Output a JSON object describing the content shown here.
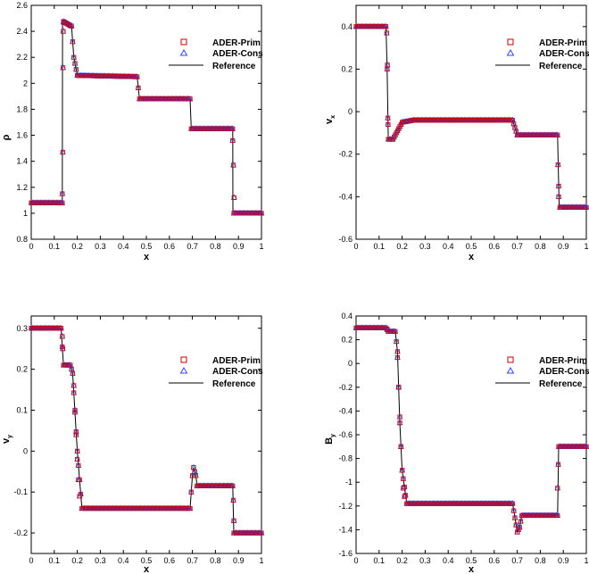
{
  "chart_data": [
    {
      "type": "scatter",
      "ylabel": "ρ",
      "ylabel_sub": "",
      "xlabel": "x",
      "xlim": [
        0,
        1
      ],
      "ylim": [
        0.8,
        2.6
      ],
      "xticks": [
        "0",
        "0.1",
        "0.2",
        "0.3",
        "0.4",
        "0.5",
        "0.6",
        "0.7",
        "0.8",
        "0.9",
        "1"
      ],
      "yticks": [
        "0.8",
        "1",
        "1.2",
        "1.4",
        "1.6",
        "1.8",
        "2",
        "2.2",
        "2.4",
        "2.6"
      ],
      "ytick_values": [
        0.8,
        1,
        1.2,
        1.4,
        1.6,
        1.8,
        2,
        2.2,
        2.4,
        2.6
      ],
      "legend_position": "top-right",
      "reference": [
        [
          0,
          1.08
        ],
        [
          0.135,
          1.08
        ],
        [
          0.136,
          2.48
        ],
        [
          0.155,
          2.46
        ],
        [
          0.175,
          2.44
        ],
        [
          0.185,
          2.2
        ],
        [
          0.2,
          2.06
        ],
        [
          0.46,
          2.05
        ],
        [
          0.47,
          1.88
        ],
        [
          0.69,
          1.88
        ],
        [
          0.695,
          1.65
        ],
        [
          0.875,
          1.65
        ],
        [
          0.876,
          1.0
        ],
        [
          1.0,
          1.0
        ]
      ],
      "markers": [
        [
          0.135,
          1.15
        ],
        [
          0.137,
          1.47
        ],
        [
          0.138,
          2.12
        ],
        [
          0.139,
          2.4
        ],
        [
          0.14,
          2.47
        ],
        [
          0.875,
          1.56
        ],
        [
          0.878,
          1.37
        ],
        [
          0.881,
          1.12
        ]
      ]
    },
    {
      "type": "scatter",
      "ylabel": "v",
      "ylabel_sub": "x",
      "xlabel": "x",
      "xlim": [
        0,
        1
      ],
      "ylim": [
        -0.6,
        0.5
      ],
      "xticks": [
        "0",
        "0.1",
        "0.2",
        "0.3",
        "0.4",
        "0.5",
        "0.6",
        "0.7",
        "0.8",
        "0.9",
        "1"
      ],
      "yticks": [
        "-0.6",
        "-0.4",
        "-0.2",
        "0",
        "0.2",
        "0.4"
      ],
      "ytick_values": [
        -0.6,
        -0.4,
        -0.2,
        0,
        0.2,
        0.4
      ],
      "legend_position": "top-right",
      "reference": [
        [
          0,
          0.4
        ],
        [
          0.13,
          0.4
        ],
        [
          0.135,
          0.2
        ],
        [
          0.14,
          -0.13
        ],
        [
          0.16,
          -0.13
        ],
        [
          0.2,
          -0.05
        ],
        [
          0.25,
          -0.04
        ],
        [
          0.68,
          -0.04
        ],
        [
          0.7,
          -0.11
        ],
        [
          0.875,
          -0.11
        ],
        [
          0.878,
          -0.25
        ],
        [
          0.882,
          -0.45
        ],
        [
          1.0,
          -0.45
        ]
      ],
      "markers": [
        [
          0.133,
          0.37
        ],
        [
          0.136,
          0.22
        ],
        [
          0.138,
          -0.03
        ],
        [
          0.139,
          -0.06
        ],
        [
          0.877,
          -0.25
        ],
        [
          0.88,
          -0.4
        ]
      ]
    },
    {
      "type": "scatter",
      "ylabel": "v",
      "ylabel_sub": "y",
      "xlabel": "x",
      "xlim": [
        0,
        1
      ],
      "ylim": [
        -0.25,
        0.33
      ],
      "xticks": [
        "0",
        "0.1",
        "0.2",
        "0.3",
        "0.4",
        "0.5",
        "0.6",
        "0.7",
        "0.8",
        "0.9",
        "1"
      ],
      "yticks": [
        "-0.2",
        "-0.1",
        "0",
        "0.1",
        "0.2",
        "0.3"
      ],
      "ytick_values": [
        -0.2,
        -0.1,
        0,
        0.1,
        0.2,
        0.3
      ],
      "legend_position": "top-right",
      "reference": [
        [
          0,
          0.3
        ],
        [
          0.13,
          0.3
        ],
        [
          0.14,
          0.21
        ],
        [
          0.17,
          0.21
        ],
        [
          0.18,
          0.19
        ],
        [
          0.2,
          0.0
        ],
        [
          0.22,
          -0.14
        ],
        [
          0.69,
          -0.14
        ],
        [
          0.7,
          -0.06
        ],
        [
          0.705,
          -0.04
        ],
        [
          0.715,
          -0.06
        ],
        [
          0.72,
          -0.085
        ],
        [
          0.875,
          -0.085
        ],
        [
          0.88,
          -0.2
        ],
        [
          1.0,
          -0.2
        ]
      ],
      "markers": [
        [
          0.135,
          0.28
        ],
        [
          0.137,
          0.25
        ],
        [
          0.185,
          0.16
        ],
        [
          0.19,
          0.1
        ],
        [
          0.195,
          0.04
        ],
        [
          0.2,
          -0.02
        ],
        [
          0.205,
          -0.07
        ],
        [
          0.21,
          -0.11
        ],
        [
          0.878,
          -0.12
        ],
        [
          0.88,
          -0.17
        ]
      ]
    },
    {
      "type": "scatter",
      "ylabel": "B",
      "ylabel_sub": "y",
      "xlabel": "x",
      "xlim": [
        0,
        1
      ],
      "ylim": [
        -1.6,
        0.4
      ],
      "xticks": [
        "0",
        "0.1",
        "0.2",
        "0.3",
        "0.4",
        "0.5",
        "0.6",
        "0.7",
        "0.8",
        "0.9",
        "1"
      ],
      "yticks": [
        "-1.6",
        "-1.4",
        "-1.2",
        "-1",
        "-0.8",
        "-0.6",
        "-0.4",
        "-0.2",
        "0",
        "0.2",
        "0.4"
      ],
      "ytick_values": [
        -1.6,
        -1.4,
        -1.2,
        -1,
        -0.8,
        -0.6,
        -0.4,
        -0.2,
        0,
        0.2,
        0.4
      ],
      "legend_position": "top-right",
      "reference": [
        [
          0,
          0.3
        ],
        [
          0.13,
          0.3
        ],
        [
          0.14,
          0.27
        ],
        [
          0.17,
          0.27
        ],
        [
          0.18,
          0.1
        ],
        [
          0.19,
          -0.5
        ],
        [
          0.2,
          -0.9
        ],
        [
          0.22,
          -1.18
        ],
        [
          0.68,
          -1.18
        ],
        [
          0.69,
          -1.3
        ],
        [
          0.7,
          -1.42
        ],
        [
          0.71,
          -1.38
        ],
        [
          0.72,
          -1.28
        ],
        [
          0.875,
          -1.28
        ],
        [
          0.88,
          -0.7
        ],
        [
          1.0,
          -0.7
        ]
      ],
      "markers": [
        [
          0.135,
          0.29
        ],
        [
          0.18,
          0.05
        ],
        [
          0.185,
          -0.2
        ],
        [
          0.19,
          -0.45
        ],
        [
          0.195,
          -0.7
        ],
        [
          0.2,
          -0.9
        ],
        [
          0.205,
          -1.05
        ],
        [
          0.21,
          -1.12
        ],
        [
          0.875,
          -1.05
        ],
        [
          0.878,
          -0.85
        ]
      ]
    }
  ],
  "legend": {
    "prim_label": "ADER-Prim",
    "cons_label": "ADER-Cons",
    "ref_label": "Reference"
  },
  "colors": {
    "prim": "#cc0000",
    "cons": "#3344ff",
    "reference": "#000000"
  }
}
